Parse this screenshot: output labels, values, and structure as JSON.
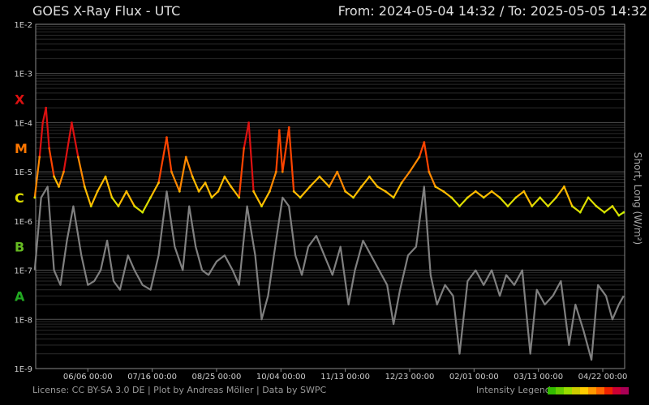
{
  "header": {
    "title": "GOES X-Ray Flux - UTC",
    "range": "From: 2024-05-04 14:32  /  To: 2025-05-05 14:32"
  },
  "footer": {
    "license": "License: CC BY-SA 3.0 DE | Plot by Andreas Möller | Data by SWPC",
    "legend_label": "Intensity Legend"
  },
  "legend_colors": [
    "#33bb00",
    "#66cc00",
    "#99dd00",
    "#cccc00",
    "#ffcc00",
    "#ff9900",
    "#ff6600",
    "#ee2200",
    "#cc0033",
    "#aa0055"
  ],
  "chart_data": {
    "type": "line",
    "title": "GOES X-Ray Flux - UTC",
    "ylabel": "Short, Long (W/m²)",
    "yscale": "log",
    "ylim": [
      1e-09,
      0.01
    ],
    "y_ticks": [
      "1E-9",
      "1E-8",
      "1E-7",
      "1E-6",
      "1E-5",
      "1E-4",
      "1E-3",
      "1E-2"
    ],
    "xlim": [
      "2024-05-04 14:32",
      "2025-05-05 14:32"
    ],
    "x_ticks": [
      {
        "date": "2024-06-06",
        "label": "06/06 00:00"
      },
      {
        "date": "2024-07-16",
        "label": "07/16 00:00"
      },
      {
        "date": "2024-08-25",
        "label": "08/25 00:00"
      },
      {
        "date": "2024-10-04",
        "label": "10/04 00:00"
      },
      {
        "date": "2024-11-13",
        "label": "11/13 00:00"
      },
      {
        "date": "2024-12-23",
        "label": "12/23 00:00"
      },
      {
        "date": "2025-02-01",
        "label": "02/01 00:00"
      },
      {
        "date": "2025-03-13",
        "label": "03/13 00:00"
      },
      {
        "date": "2025-04-22",
        "label": "04/22 00:00"
      }
    ],
    "classes": [
      {
        "label": "A",
        "y": 3e-08,
        "color": "#22aa22"
      },
      {
        "label": "B",
        "y": 3e-07,
        "color": "#66bb22"
      },
      {
        "label": "C",
        "y": 3e-06,
        "color": "#dddd00"
      },
      {
        "label": "M",
        "y": 3e-05,
        "color": "#ff7700"
      },
      {
        "label": "X",
        "y": 0.0003,
        "color": "#dd1111"
      }
    ],
    "grid": true,
    "series": [
      {
        "name": "Long",
        "color": "#e8e800",
        "points": [
          [
            "2024-05-04",
            3e-06
          ],
          [
            "2024-05-07",
            2e-05
          ],
          [
            "2024-05-09",
            0.0001
          ],
          [
            "2024-05-11",
            0.0002
          ],
          [
            "2024-05-13",
            3e-05
          ],
          [
            "2024-05-16",
            8e-06
          ],
          [
            "2024-05-19",
            5e-06
          ],
          [
            "2024-05-22",
            1e-05
          ],
          [
            "2024-05-27",
            0.0001
          ],
          [
            "2024-05-31",
            2e-05
          ],
          [
            "2024-06-04",
            5e-06
          ],
          [
            "2024-06-08",
            2e-06
          ],
          [
            "2024-06-12",
            4e-06
          ],
          [
            "2024-06-17",
            8e-06
          ],
          [
            "2024-06-21",
            3e-06
          ],
          [
            "2024-06-25",
            2e-06
          ],
          [
            "2024-06-30",
            4e-06
          ],
          [
            "2024-07-05",
            2e-06
          ],
          [
            "2024-07-10",
            1.5e-06
          ],
          [
            "2024-07-15",
            3e-06
          ],
          [
            "2024-07-20",
            6e-06
          ],
          [
            "2024-07-25",
            5e-05
          ],
          [
            "2024-07-28",
            1e-05
          ],
          [
            "2024-08-02",
            4e-06
          ],
          [
            "2024-08-06",
            2e-05
          ],
          [
            "2024-08-10",
            8e-06
          ],
          [
            "2024-08-14",
            4e-06
          ],
          [
            "2024-08-18",
            6e-06
          ],
          [
            "2024-08-22",
            3e-06
          ],
          [
            "2024-08-26",
            4e-06
          ],
          [
            "2024-08-30",
            8e-06
          ],
          [
            "2024-09-03",
            5e-06
          ],
          [
            "2024-09-08",
            3e-06
          ],
          [
            "2024-09-11",
            3e-05
          ],
          [
            "2024-09-14",
            0.0001
          ],
          [
            "2024-09-17",
            4e-06
          ],
          [
            "2024-09-22",
            2e-06
          ],
          [
            "2024-09-27",
            4e-06
          ],
          [
            "2024-10-01",
            1e-05
          ],
          [
            "2024-10-03",
            7e-05
          ],
          [
            "2024-10-05",
            1e-05
          ],
          [
            "2024-10-09",
            8e-05
          ],
          [
            "2024-10-12",
            4e-06
          ],
          [
            "2024-10-16",
            3e-06
          ],
          [
            "2024-10-22",
            5e-06
          ],
          [
            "2024-10-28",
            8e-06
          ],
          [
            "2024-11-03",
            5e-06
          ],
          [
            "2024-11-08",
            1e-05
          ],
          [
            "2024-11-13",
            4e-06
          ],
          [
            "2024-11-18",
            3e-06
          ],
          [
            "2024-11-23",
            5e-06
          ],
          [
            "2024-11-28",
            8e-06
          ],
          [
            "2024-12-03",
            5e-06
          ],
          [
            "2024-12-08",
            4e-06
          ],
          [
            "2024-12-13",
            3e-06
          ],
          [
            "2024-12-18",
            6e-06
          ],
          [
            "2024-12-23",
            1e-05
          ],
          [
            "2024-12-29",
            2e-05
          ],
          [
            "2025-01-01",
            4e-05
          ],
          [
            "2025-01-04",
            1e-05
          ],
          [
            "2025-01-08",
            5e-06
          ],
          [
            "2025-01-13",
            4e-06
          ],
          [
            "2025-01-18",
            3e-06
          ],
          [
            "2025-01-23",
            2e-06
          ],
          [
            "2025-01-28",
            3e-06
          ],
          [
            "2025-02-02",
            4e-06
          ],
          [
            "2025-02-07",
            3e-06
          ],
          [
            "2025-02-12",
            4e-06
          ],
          [
            "2025-02-17",
            3e-06
          ],
          [
            "2025-02-22",
            2e-06
          ],
          [
            "2025-02-27",
            3e-06
          ],
          [
            "2025-03-04",
            4e-06
          ],
          [
            "2025-03-09",
            2e-06
          ],
          [
            "2025-03-14",
            3e-06
          ],
          [
            "2025-03-19",
            2e-06
          ],
          [
            "2025-03-24",
            3e-06
          ],
          [
            "2025-03-29",
            5e-06
          ],
          [
            "2025-04-03",
            2e-06
          ],
          [
            "2025-04-08",
            1.5e-06
          ],
          [
            "2025-04-13",
            3e-06
          ],
          [
            "2025-04-18",
            2e-06
          ],
          [
            "2025-04-23",
            1.5e-06
          ],
          [
            "2025-04-28",
            2e-06
          ],
          [
            "2025-05-02",
            1.3e-06
          ],
          [
            "2025-05-05",
            1.5e-06
          ]
        ]
      },
      {
        "name": "Short",
        "color": "#808080",
        "points": [
          [
            "2024-05-04",
            1e-07
          ],
          [
            "2024-05-08",
            3e-06
          ],
          [
            "2024-05-12",
            5e-06
          ],
          [
            "2024-05-16",
            1e-07
          ],
          [
            "2024-05-20",
            5e-08
          ],
          [
            "2024-05-24",
            4e-07
          ],
          [
            "2024-05-28",
            2e-06
          ],
          [
            "2024-06-02",
            2e-07
          ],
          [
            "2024-06-06",
            5e-08
          ],
          [
            "2024-06-10",
            6e-08
          ],
          [
            "2024-06-14",
            1e-07
          ],
          [
            "2024-06-18",
            4e-07
          ],
          [
            "2024-06-22",
            6e-08
          ],
          [
            "2024-06-26",
            4e-08
          ],
          [
            "2024-07-01",
            2e-07
          ],
          [
            "2024-07-05",
            1e-07
          ],
          [
            "2024-07-10",
            5e-08
          ],
          [
            "2024-07-15",
            4e-08
          ],
          [
            "2024-07-20",
            2e-07
          ],
          [
            "2024-07-25",
            4e-06
          ],
          [
            "2024-07-30",
            3e-07
          ],
          [
            "2024-08-04",
            1e-07
          ],
          [
            "2024-08-08",
            2e-06
          ],
          [
            "2024-08-12",
            3e-07
          ],
          [
            "2024-08-16",
            1e-07
          ],
          [
            "2024-08-20",
            8e-08
          ],
          [
            "2024-08-25",
            1.5e-07
          ],
          [
            "2024-08-30",
            2e-07
          ],
          [
            "2024-09-04",
            1e-07
          ],
          [
            "2024-09-08",
            5e-08
          ],
          [
            "2024-09-13",
            2e-06
          ],
          [
            "2024-09-18",
            2e-07
          ],
          [
            "2024-09-22",
            1e-08
          ],
          [
            "2024-09-26",
            3e-08
          ],
          [
            "2024-10-01",
            4e-07
          ],
          [
            "2024-10-05",
            3e-06
          ],
          [
            "2024-10-09",
            2e-06
          ],
          [
            "2024-10-13",
            2e-07
          ],
          [
            "2024-10-17",
            8e-08
          ],
          [
            "2024-10-21",
            3e-07
          ],
          [
            "2024-10-26",
            5e-07
          ],
          [
            "2024-10-31",
            2e-07
          ],
          [
            "2024-11-05",
            8e-08
          ],
          [
            "2024-11-10",
            3e-07
          ],
          [
            "2024-11-15",
            2e-08
          ],
          [
            "2024-11-19",
            1e-07
          ],
          [
            "2024-11-24",
            4e-07
          ],
          [
            "2024-11-29",
            2e-07
          ],
          [
            "2024-12-04",
            1e-07
          ],
          [
            "2024-12-09",
            5e-08
          ],
          [
            "2024-12-13",
            8e-09
          ],
          [
            "2024-12-17",
            4e-08
          ],
          [
            "2024-12-22",
            2e-07
          ],
          [
            "2024-12-27",
            3e-07
          ],
          [
            "2025-01-01",
            5e-06
          ],
          [
            "2025-01-05",
            8e-08
          ],
          [
            "2025-01-09",
            2e-08
          ],
          [
            "2025-01-14",
            5e-08
          ],
          [
            "2025-01-19",
            3e-08
          ],
          [
            "2025-01-23",
            2e-09
          ],
          [
            "2025-01-28",
            6e-08
          ],
          [
            "2025-02-02",
            1e-07
          ],
          [
            "2025-02-07",
            5e-08
          ],
          [
            "2025-02-12",
            1e-07
          ],
          [
            "2025-02-17",
            3e-08
          ],
          [
            "2025-02-21",
            8e-08
          ],
          [
            "2025-02-26",
            5e-08
          ],
          [
            "2025-03-03",
            1e-07
          ],
          [
            "2025-03-08",
            2e-09
          ],
          [
            "2025-03-12",
            4e-08
          ],
          [
            "2025-03-17",
            2e-08
          ],
          [
            "2025-03-22",
            3e-08
          ],
          [
            "2025-03-27",
            6e-08
          ],
          [
            "2025-04-01",
            3e-09
          ],
          [
            "2025-04-05",
            2e-08
          ],
          [
            "2025-04-10",
            6e-09
          ],
          [
            "2025-04-15",
            1.5e-09
          ],
          [
            "2025-04-19",
            5e-08
          ],
          [
            "2025-04-24",
            3e-08
          ],
          [
            "2025-04-28",
            1e-08
          ],
          [
            "2025-05-02",
            2e-08
          ],
          [
            "2025-05-05",
            3e-08
          ]
        ]
      }
    ]
  }
}
